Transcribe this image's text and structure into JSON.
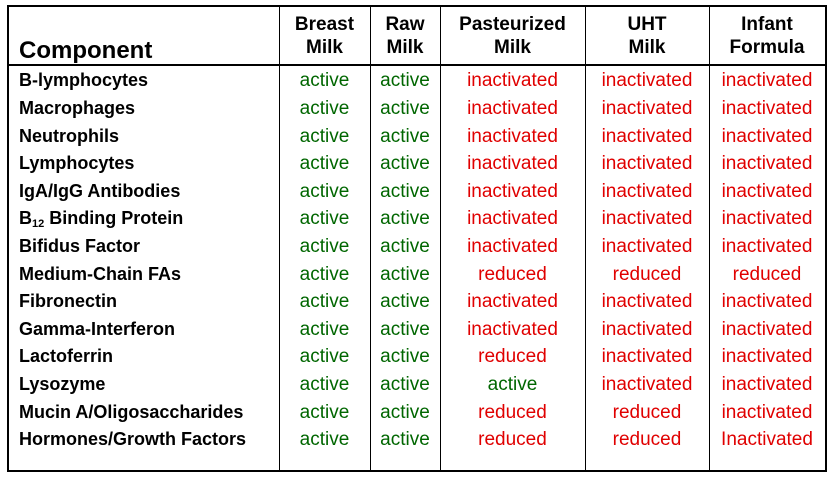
{
  "table": {
    "headers": [
      "Component",
      "Breast\nMilk",
      "Raw\nMilk",
      "Pasteurized\nMilk",
      "UHT\nMilk",
      "Infant\nFormula"
    ],
    "rows": [
      {
        "component": "B-lymphocytes",
        "values": [
          "active",
          "active",
          "inactivated",
          "inactivated",
          "inactivated"
        ]
      },
      {
        "component": "Macrophages",
        "values": [
          "active",
          "active",
          "inactivated",
          "inactivated",
          "inactivated"
        ]
      },
      {
        "component": "Neutrophils",
        "values": [
          "active",
          "active",
          "inactivated",
          "inactivated",
          "inactivated"
        ]
      },
      {
        "component": "Lymphocytes",
        "values": [
          "active",
          "active",
          "inactivated",
          "inactivated",
          "inactivated"
        ]
      },
      {
        "component": "IgA/IgG Antibodies",
        "values": [
          "active",
          "active",
          "inactivated",
          "inactivated",
          "inactivated"
        ]
      },
      {
        "component": "B",
        "component_sub": "12",
        "component_rest": " Binding Protein",
        "values": [
          "active",
          "active",
          "inactivated",
          "inactivated",
          "inactivated"
        ]
      },
      {
        "component": "Bifidus Factor",
        "values": [
          "active",
          "active",
          "inactivated",
          "inactivated",
          "inactivated"
        ]
      },
      {
        "component": "Medium-Chain FAs",
        "values": [
          "active",
          "active",
          "reduced",
          "reduced",
          "reduced"
        ]
      },
      {
        "component": "Fibronectin",
        "values": [
          "active",
          "active",
          "inactivated",
          "inactivated",
          "inactivated"
        ]
      },
      {
        "component": "Gamma-Interferon",
        "values": [
          "active",
          "active",
          "inactivated",
          "inactivated",
          "inactivated"
        ]
      },
      {
        "component": "Lactoferrin",
        "values": [
          "active",
          "active",
          "reduced",
          "inactivated",
          "inactivated"
        ]
      },
      {
        "component": "Lysozyme",
        "values": [
          "active",
          "active",
          "active",
          "inactivated",
          "inactivated"
        ]
      },
      {
        "component": "Mucin A/Oligosaccharides",
        "values": [
          "active",
          "active",
          "reduced",
          "reduced",
          "inactivated"
        ]
      },
      {
        "component": "Hormones/Growth Factors",
        "values": [
          "active",
          "active",
          "reduced",
          "reduced",
          "Inactivated"
        ]
      }
    ]
  },
  "colors": {
    "active": "#006600",
    "inactivated": "#e00000",
    "reduced": "#e00000",
    "border": "#000000"
  }
}
